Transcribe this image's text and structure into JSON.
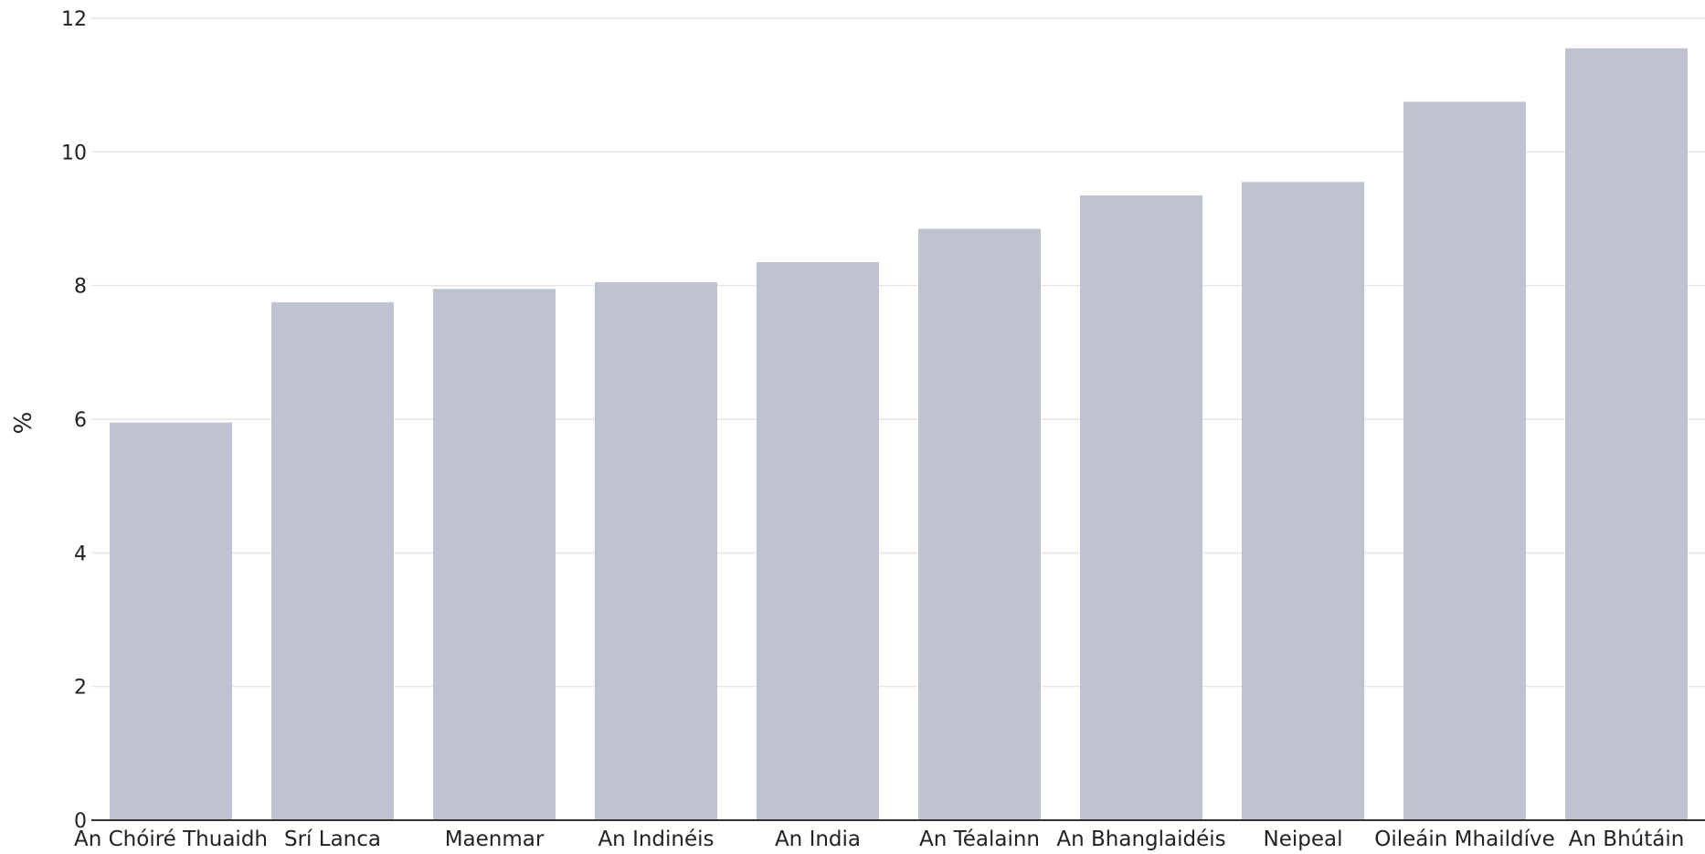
{
  "chart_data": {
    "type": "bar",
    "title": "",
    "xlabel": "",
    "ylabel": "%",
    "ylim": [
      0,
      12
    ],
    "yticks": [
      0,
      2,
      4,
      6,
      8,
      10,
      12
    ],
    "grid": true,
    "legend": "none",
    "categories": [
      "An Chóiré Thuaidh",
      "Srí Lanca",
      "Maenmar",
      "An Indinéis",
      "An India",
      "An Téalainn",
      "An Bhanglaidéis",
      "Neipeal",
      "Oileáin Mhaildíve",
      "An Bhútáin"
    ],
    "series": [
      {
        "values": [
          5.95,
          7.75,
          7.95,
          8.05,
          8.35,
          8.85,
          9.35,
          9.55,
          10.75,
          11.55
        ],
        "color": "#bfc3d1"
      }
    ],
    "colors": {
      "bar": "#bfc3d1",
      "grid": "#e6e6e6",
      "axis": "#333333",
      "text": "#222222"
    }
  }
}
